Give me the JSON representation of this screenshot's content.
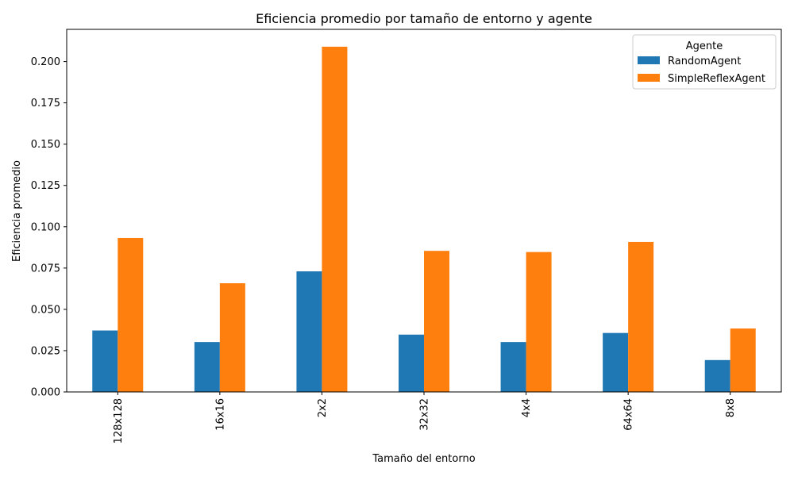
{
  "chart_data": {
    "type": "bar",
    "title": "Eficiencia promedio por tamaño de entorno y agente",
    "xlabel": "Tamaño del entorno",
    "ylabel": "Eficiencia promedio",
    "categories": [
      "128x128",
      "16x16",
      "2x2",
      "32x32",
      "4x4",
      "64x64",
      "8x8"
    ],
    "series": [
      {
        "name": "RandomAgent",
        "color": "#1f77b4",
        "values": [
          0.0372,
          0.0302,
          0.073,
          0.0347,
          0.0302,
          0.0357,
          0.0193
        ]
      },
      {
        "name": "SimpleReflexAgent",
        "color": "#ff7f0e",
        "values": [
          0.0932,
          0.0658,
          0.209,
          0.0854,
          0.0847,
          0.0908,
          0.0384
        ]
      }
    ],
    "yticks": [
      "0.000",
      "0.025",
      "0.050",
      "0.075",
      "0.100",
      "0.125",
      "0.150",
      "0.175",
      "0.200"
    ],
    "ylim": [
      0,
      0.2195
    ],
    "legend": {
      "title": "Agente",
      "position": "top-right"
    },
    "grid": false
  }
}
